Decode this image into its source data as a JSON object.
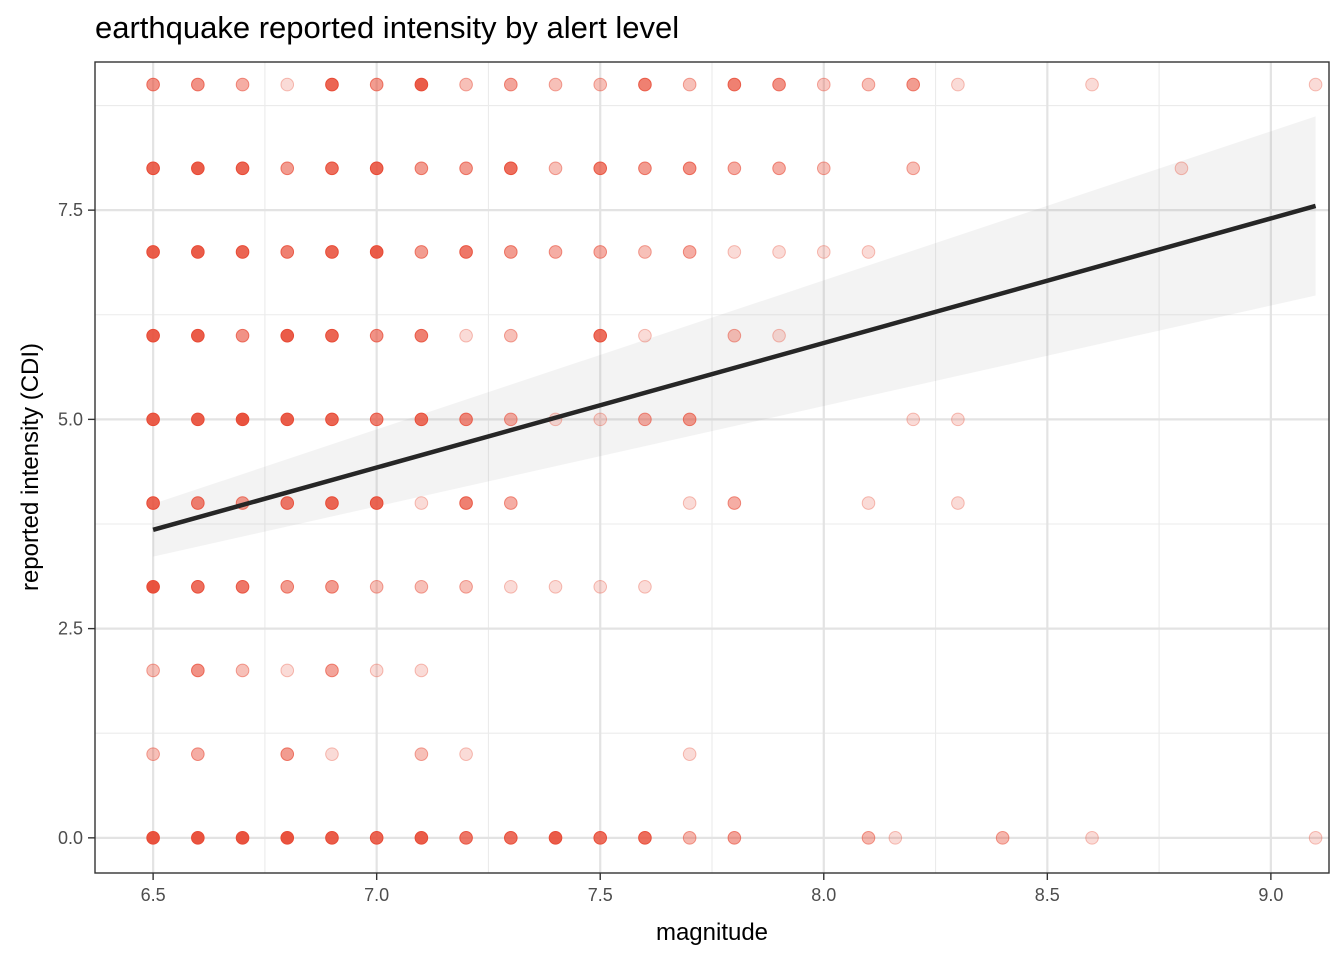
{
  "chart_data": {
    "type": "scatter",
    "title": "earthquake reported intensity by alert level",
    "xlabel": "magnitude",
    "ylabel": "reported intensity (CDI)",
    "xlim": [
      6.37,
      9.13
    ],
    "ylim": [
      -0.42,
      9.27
    ],
    "x_ticks": [
      6.5,
      7.0,
      7.5,
      8.0,
      8.5,
      9.0
    ],
    "x_tick_labels": [
      "6.5",
      "7.0",
      "7.5",
      "8.0",
      "8.5",
      "9.0"
    ],
    "y_ticks": [
      0.0,
      2.5,
      5.0,
      7.5
    ],
    "y_tick_labels": [
      "0.0",
      "2.5",
      "5.0",
      "7.5"
    ],
    "grid": true,
    "point_color": "#E84A35",
    "line_color": "#262626",
    "band_color": "#999999",
    "points": [
      {
        "x": 6.5,
        "y": 9,
        "a": 0.6
      },
      {
        "x": 6.6,
        "y": 9,
        "a": 0.6
      },
      {
        "x": 6.7,
        "y": 9,
        "a": 0.45
      },
      {
        "x": 6.8,
        "y": 9,
        "a": 0.2
      },
      {
        "x": 6.9,
        "y": 9,
        "a": 0.85
      },
      {
        "x": 7.0,
        "y": 9,
        "a": 0.55
      },
      {
        "x": 7.1,
        "y": 9,
        "a": 0.9
      },
      {
        "x": 7.2,
        "y": 9,
        "a": 0.35
      },
      {
        "x": 7.3,
        "y": 9,
        "a": 0.5
      },
      {
        "x": 7.4,
        "y": 9,
        "a": 0.35
      },
      {
        "x": 7.5,
        "y": 9,
        "a": 0.35
      },
      {
        "x": 7.6,
        "y": 9,
        "a": 0.7
      },
      {
        "x": 7.7,
        "y": 9,
        "a": 0.35
      },
      {
        "x": 7.8,
        "y": 9,
        "a": 0.7
      },
      {
        "x": 7.9,
        "y": 9,
        "a": 0.6
      },
      {
        "x": 8.0,
        "y": 9,
        "a": 0.3
      },
      {
        "x": 8.1,
        "y": 9,
        "a": 0.35
      },
      {
        "x": 8.2,
        "y": 9,
        "a": 0.55
      },
      {
        "x": 8.3,
        "y": 9,
        "a": 0.2
      },
      {
        "x": 8.6,
        "y": 9,
        "a": 0.2
      },
      {
        "x": 9.1,
        "y": 9,
        "a": 0.2
      },
      {
        "x": 6.5,
        "y": 8,
        "a": 0.85
      },
      {
        "x": 6.6,
        "y": 8,
        "a": 0.9
      },
      {
        "x": 6.7,
        "y": 8,
        "a": 0.85
      },
      {
        "x": 6.8,
        "y": 8,
        "a": 0.55
      },
      {
        "x": 6.9,
        "y": 8,
        "a": 0.8
      },
      {
        "x": 7.0,
        "y": 8,
        "a": 0.85
      },
      {
        "x": 7.1,
        "y": 8,
        "a": 0.55
      },
      {
        "x": 7.2,
        "y": 8,
        "a": 0.55
      },
      {
        "x": 7.3,
        "y": 8,
        "a": 0.8
      },
      {
        "x": 7.4,
        "y": 8,
        "a": 0.35
      },
      {
        "x": 7.5,
        "y": 8,
        "a": 0.7
      },
      {
        "x": 7.6,
        "y": 8,
        "a": 0.55
      },
      {
        "x": 7.7,
        "y": 8,
        "a": 0.6
      },
      {
        "x": 7.8,
        "y": 8,
        "a": 0.45
      },
      {
        "x": 7.9,
        "y": 8,
        "a": 0.45
      },
      {
        "x": 8.0,
        "y": 8,
        "a": 0.35
      },
      {
        "x": 8.2,
        "y": 8,
        "a": 0.35
      },
      {
        "x": 8.8,
        "y": 8,
        "a": 0.2
      },
      {
        "x": 6.5,
        "y": 7,
        "a": 0.9
      },
      {
        "x": 6.6,
        "y": 7,
        "a": 0.9
      },
      {
        "x": 6.7,
        "y": 7,
        "a": 0.85
      },
      {
        "x": 6.8,
        "y": 7,
        "a": 0.7
      },
      {
        "x": 6.9,
        "y": 7,
        "a": 0.85
      },
      {
        "x": 7.0,
        "y": 7,
        "a": 0.9
      },
      {
        "x": 7.1,
        "y": 7,
        "a": 0.55
      },
      {
        "x": 7.2,
        "y": 7,
        "a": 0.75
      },
      {
        "x": 7.3,
        "y": 7,
        "a": 0.55
      },
      {
        "x": 7.4,
        "y": 7,
        "a": 0.45
      },
      {
        "x": 7.5,
        "y": 7,
        "a": 0.45
      },
      {
        "x": 7.6,
        "y": 7,
        "a": 0.35
      },
      {
        "x": 7.7,
        "y": 7,
        "a": 0.45
      },
      {
        "x": 7.8,
        "y": 7,
        "a": 0.2
      },
      {
        "x": 7.9,
        "y": 7,
        "a": 0.2
      },
      {
        "x": 8.0,
        "y": 7,
        "a": 0.2
      },
      {
        "x": 8.1,
        "y": 7,
        "a": 0.2
      },
      {
        "x": 6.5,
        "y": 6,
        "a": 0.9
      },
      {
        "x": 6.6,
        "y": 6,
        "a": 0.9
      },
      {
        "x": 6.7,
        "y": 6,
        "a": 0.6
      },
      {
        "x": 6.8,
        "y": 6,
        "a": 0.9
      },
      {
        "x": 6.9,
        "y": 6,
        "a": 0.85
      },
      {
        "x": 7.0,
        "y": 6,
        "a": 0.6
      },
      {
        "x": 7.1,
        "y": 6,
        "a": 0.7
      },
      {
        "x": 7.2,
        "y": 6,
        "a": 0.2
      },
      {
        "x": 7.3,
        "y": 6,
        "a": 0.35
      },
      {
        "x": 7.5,
        "y": 6,
        "a": 0.8
      },
      {
        "x": 7.6,
        "y": 6,
        "a": 0.2
      },
      {
        "x": 7.8,
        "y": 6,
        "a": 0.35
      },
      {
        "x": 7.9,
        "y": 6,
        "a": 0.2
      },
      {
        "x": 6.5,
        "y": 5,
        "a": 0.9
      },
      {
        "x": 6.6,
        "y": 5,
        "a": 0.9
      },
      {
        "x": 6.7,
        "y": 5,
        "a": 0.95
      },
      {
        "x": 6.8,
        "y": 5,
        "a": 0.9
      },
      {
        "x": 6.9,
        "y": 5,
        "a": 0.85
      },
      {
        "x": 7.0,
        "y": 5,
        "a": 0.7
      },
      {
        "x": 7.1,
        "y": 5,
        "a": 0.8
      },
      {
        "x": 7.2,
        "y": 5,
        "a": 0.65
      },
      {
        "x": 7.3,
        "y": 5,
        "a": 0.45
      },
      {
        "x": 7.4,
        "y": 5,
        "a": 0.2
      },
      {
        "x": 7.5,
        "y": 5,
        "a": 0.2
      },
      {
        "x": 7.6,
        "y": 5,
        "a": 0.45
      },
      {
        "x": 7.7,
        "y": 5,
        "a": 0.55
      },
      {
        "x": 8.2,
        "y": 5,
        "a": 0.2
      },
      {
        "x": 8.3,
        "y": 5,
        "a": 0.2
      },
      {
        "x": 6.5,
        "y": 4,
        "a": 0.85
      },
      {
        "x": 6.6,
        "y": 4,
        "a": 0.7
      },
      {
        "x": 6.7,
        "y": 4,
        "a": 0.55
      },
      {
        "x": 6.8,
        "y": 4,
        "a": 0.75
      },
      {
        "x": 6.9,
        "y": 4,
        "a": 0.85
      },
      {
        "x": 7.0,
        "y": 4,
        "a": 0.85
      },
      {
        "x": 7.1,
        "y": 4,
        "a": 0.2
      },
      {
        "x": 7.2,
        "y": 4,
        "a": 0.7
      },
      {
        "x": 7.3,
        "y": 4,
        "a": 0.45
      },
      {
        "x": 7.7,
        "y": 4,
        "a": 0.2
      },
      {
        "x": 7.8,
        "y": 4,
        "a": 0.45
      },
      {
        "x": 8.1,
        "y": 4,
        "a": 0.2
      },
      {
        "x": 8.3,
        "y": 4,
        "a": 0.2
      },
      {
        "x": 6.5,
        "y": 3,
        "a": 0.95
      },
      {
        "x": 6.6,
        "y": 3,
        "a": 0.8
      },
      {
        "x": 6.7,
        "y": 3,
        "a": 0.75
      },
      {
        "x": 6.8,
        "y": 3,
        "a": 0.55
      },
      {
        "x": 6.9,
        "y": 3,
        "a": 0.55
      },
      {
        "x": 7.0,
        "y": 3,
        "a": 0.35
      },
      {
        "x": 7.1,
        "y": 3,
        "a": 0.35
      },
      {
        "x": 7.2,
        "y": 3,
        "a": 0.35
      },
      {
        "x": 7.3,
        "y": 3,
        "a": 0.2
      },
      {
        "x": 7.4,
        "y": 3,
        "a": 0.2
      },
      {
        "x": 7.5,
        "y": 3,
        "a": 0.2
      },
      {
        "x": 7.6,
        "y": 3,
        "a": 0.2
      },
      {
        "x": 6.5,
        "y": 2,
        "a": 0.35
      },
      {
        "x": 6.6,
        "y": 2,
        "a": 0.6
      },
      {
        "x": 6.7,
        "y": 2,
        "a": 0.35
      },
      {
        "x": 6.8,
        "y": 2,
        "a": 0.2
      },
      {
        "x": 6.9,
        "y": 2,
        "a": 0.5
      },
      {
        "x": 7.0,
        "y": 2,
        "a": 0.2
      },
      {
        "x": 7.1,
        "y": 2,
        "a": 0.2
      },
      {
        "x": 6.5,
        "y": 1,
        "a": 0.35
      },
      {
        "x": 6.6,
        "y": 1,
        "a": 0.45
      },
      {
        "x": 6.8,
        "y": 1,
        "a": 0.55
      },
      {
        "x": 6.9,
        "y": 1,
        "a": 0.2
      },
      {
        "x": 7.1,
        "y": 1,
        "a": 0.35
      },
      {
        "x": 7.2,
        "y": 1,
        "a": 0.2
      },
      {
        "x": 7.7,
        "y": 1,
        "a": 0.2
      },
      {
        "x": 6.5,
        "y": 0,
        "a": 0.95
      },
      {
        "x": 6.6,
        "y": 0,
        "a": 0.95
      },
      {
        "x": 6.7,
        "y": 0,
        "a": 0.95
      },
      {
        "x": 6.8,
        "y": 0,
        "a": 0.95
      },
      {
        "x": 6.9,
        "y": 0,
        "a": 0.9
      },
      {
        "x": 7.0,
        "y": 0,
        "a": 0.85
      },
      {
        "x": 7.1,
        "y": 0,
        "a": 0.9
      },
      {
        "x": 7.2,
        "y": 0,
        "a": 0.75
      },
      {
        "x": 7.3,
        "y": 0,
        "a": 0.8
      },
      {
        "x": 7.4,
        "y": 0,
        "a": 0.9
      },
      {
        "x": 7.5,
        "y": 0,
        "a": 0.8
      },
      {
        "x": 7.6,
        "y": 0,
        "a": 0.8
      },
      {
        "x": 7.7,
        "y": 0,
        "a": 0.4
      },
      {
        "x": 7.8,
        "y": 0,
        "a": 0.5
      },
      {
        "x": 8.1,
        "y": 0,
        "a": 0.4
      },
      {
        "x": 8.16,
        "y": 0,
        "a": 0.2
      },
      {
        "x": 8.4,
        "y": 0,
        "a": 0.4
      },
      {
        "x": 8.6,
        "y": 0,
        "a": 0.2
      },
      {
        "x": 9.1,
        "y": 0,
        "a": 0.2
      }
    ],
    "trend": {
      "x": [
        6.5,
        9.1
      ],
      "y": [
        3.68,
        7.55
      ],
      "lower": [
        3.36,
        6.48
      ],
      "upper": [
        3.99,
        8.62
      ]
    }
  }
}
